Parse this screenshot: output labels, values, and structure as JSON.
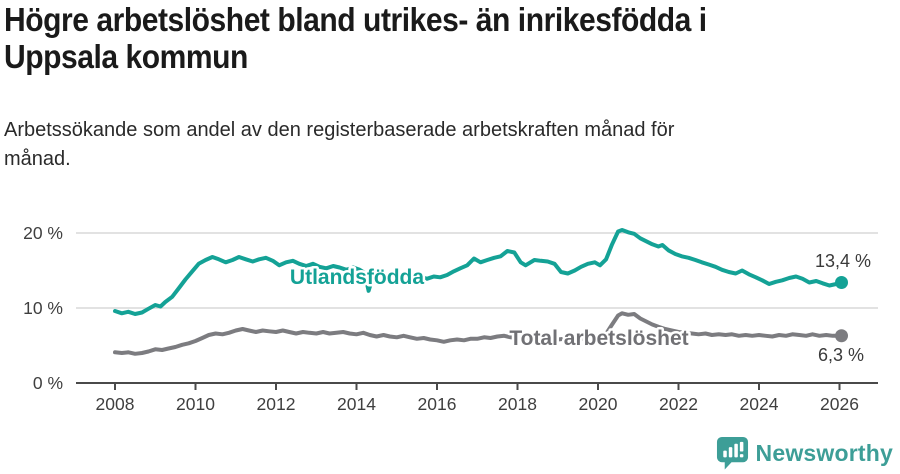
{
  "header": {
    "title": "Högre arbetslöshet bland utrikes- än inrikesfödda i Uppsala kommun",
    "subtitle": "Arbetssökande som andel av den registerbaserade arbetskraften månad för månad."
  },
  "footer": {
    "brand": "Newsworthy",
    "brand_color": "#3d9e97",
    "logo_icon": "newsworthy-bar-chart-bubble-icon"
  },
  "chart_data": {
    "type": "line",
    "title": "Högre arbetslöshet bland utrikes- än inrikesfödda i Uppsala kommun",
    "ylabel": "",
    "xlabel": "",
    "unit": "%",
    "grid": true,
    "legend_position": "inline-labels",
    "colors": {
      "grid": "#d9d9d9",
      "axis": "#4a4a4a",
      "tick_text": "#3f3f3f",
      "value_text": "#3a3a3a"
    },
    "x_axis": {
      "ticks": [
        2008,
        2010,
        2012,
        2014,
        2016,
        2018,
        2020,
        2022,
        2024,
        2026
      ],
      "range": [
        2007.0,
        2026.9
      ]
    },
    "y_axis": {
      "ticks": [
        0,
        10,
        20
      ],
      "tick_labels": [
        "0 %",
        "10 %",
        "20 %"
      ],
      "range": [
        0,
        21.3
      ]
    },
    "series": [
      {
        "name": "Utlandsfödda",
        "color": "#14a296",
        "label_color": "#14a296",
        "end_value": 13.4,
        "end_label": "13,4 %",
        "label_pos": {
          "x": 357,
          "y": 284
        },
        "end_label_pos": {
          "x": 871,
          "y": 267
        },
        "points": [
          [
            2008.0,
            9.6
          ],
          [
            2008.17,
            9.3
          ],
          [
            2008.33,
            9.5
          ],
          [
            2008.5,
            9.2
          ],
          [
            2008.67,
            9.4
          ],
          [
            2008.83,
            9.9
          ],
          [
            2009.0,
            10.4
          ],
          [
            2009.13,
            10.2
          ],
          [
            2009.25,
            10.8
          ],
          [
            2009.42,
            11.5
          ],
          [
            2009.58,
            12.6
          ],
          [
            2009.75,
            13.8
          ],
          [
            2009.92,
            14.9
          ],
          [
            2010.08,
            15.9
          ],
          [
            2010.25,
            16.4
          ],
          [
            2010.42,
            16.8
          ],
          [
            2010.58,
            16.5
          ],
          [
            2010.75,
            16.1
          ],
          [
            2010.92,
            16.4
          ],
          [
            2011.08,
            16.8
          ],
          [
            2011.25,
            16.5
          ],
          [
            2011.42,
            16.2
          ],
          [
            2011.58,
            16.5
          ],
          [
            2011.75,
            16.7
          ],
          [
            2011.92,
            16.3
          ],
          [
            2012.08,
            15.7
          ],
          [
            2012.25,
            16.1
          ],
          [
            2012.42,
            16.3
          ],
          [
            2012.58,
            15.9
          ],
          [
            2012.75,
            15.6
          ],
          [
            2012.92,
            15.9
          ],
          [
            2013.08,
            15.5
          ],
          [
            2013.25,
            15.3
          ],
          [
            2013.42,
            15.6
          ],
          [
            2013.58,
            15.4
          ],
          [
            2013.75,
            15.1
          ],
          [
            2013.92,
            15.4
          ],
          [
            2014.08,
            15.1
          ],
          [
            2014.2,
            14.7
          ],
          [
            2014.3,
            12.3
          ],
          [
            2014.42,
            14.4
          ],
          [
            2014.58,
            14.7
          ],
          [
            2014.75,
            14.4
          ],
          [
            2014.92,
            14.6
          ],
          [
            2015.08,
            14.3
          ],
          [
            2015.25,
            14.1
          ],
          [
            2015.42,
            14.4
          ],
          [
            2015.58,
            14.2
          ],
          [
            2015.75,
            13.9
          ],
          [
            2015.92,
            14.2
          ],
          [
            2016.08,
            14.1
          ],
          [
            2016.25,
            14.4
          ],
          [
            2016.42,
            14.9
          ],
          [
            2016.58,
            15.3
          ],
          [
            2016.75,
            15.7
          ],
          [
            2016.92,
            16.6
          ],
          [
            2017.08,
            16.1
          ],
          [
            2017.25,
            16.4
          ],
          [
            2017.42,
            16.7
          ],
          [
            2017.58,
            16.9
          ],
          [
            2017.75,
            17.6
          ],
          [
            2017.92,
            17.4
          ],
          [
            2018.08,
            16.1
          ],
          [
            2018.2,
            15.7
          ],
          [
            2018.42,
            16.4
          ],
          [
            2018.58,
            16.3
          ],
          [
            2018.75,
            16.2
          ],
          [
            2018.92,
            15.9
          ],
          [
            2019.08,
            14.8
          ],
          [
            2019.25,
            14.6
          ],
          [
            2019.42,
            15.0
          ],
          [
            2019.58,
            15.5
          ],
          [
            2019.75,
            15.9
          ],
          [
            2019.92,
            16.1
          ],
          [
            2020.05,
            15.7
          ],
          [
            2020.2,
            16.5
          ],
          [
            2020.35,
            18.5
          ],
          [
            2020.5,
            20.2
          ],
          [
            2020.6,
            20.4
          ],
          [
            2020.75,
            20.1
          ],
          [
            2020.9,
            19.9
          ],
          [
            2021.05,
            19.3
          ],
          [
            2021.2,
            18.9
          ],
          [
            2021.35,
            18.5
          ],
          [
            2021.5,
            18.2
          ],
          [
            2021.6,
            18.4
          ],
          [
            2021.75,
            17.7
          ],
          [
            2021.92,
            17.2
          ],
          [
            2022.08,
            16.9
          ],
          [
            2022.25,
            16.7
          ],
          [
            2022.42,
            16.4
          ],
          [
            2022.58,
            16.1
          ],
          [
            2022.75,
            15.8
          ],
          [
            2022.92,
            15.5
          ],
          [
            2023.08,
            15.1
          ],
          [
            2023.25,
            14.8
          ],
          [
            2023.42,
            14.6
          ],
          [
            2023.58,
            15.0
          ],
          [
            2023.75,
            14.5
          ],
          [
            2023.92,
            14.1
          ],
          [
            2024.08,
            13.7
          ],
          [
            2024.25,
            13.2
          ],
          [
            2024.42,
            13.5
          ],
          [
            2024.58,
            13.7
          ],
          [
            2024.75,
            14.0
          ],
          [
            2024.92,
            14.2
          ],
          [
            2025.08,
            13.9
          ],
          [
            2025.25,
            13.4
          ],
          [
            2025.42,
            13.6
          ],
          [
            2025.58,
            13.3
          ],
          [
            2025.75,
            13.0
          ],
          [
            2025.92,
            13.2
          ],
          [
            2026.05,
            13.4
          ]
        ]
      },
      {
        "name": "Total arbetslöshet",
        "color": "#7c7c80",
        "label_color": "#717175",
        "end_value": 6.3,
        "end_label": "6,3 %",
        "label_pos": {
          "x": 599,
          "y": 345
        },
        "end_label_pos": {
          "x": 864,
          "y": 361
        },
        "points": [
          [
            2008.0,
            4.1
          ],
          [
            2008.17,
            4.0
          ],
          [
            2008.33,
            4.1
          ],
          [
            2008.5,
            3.9
          ],
          [
            2008.67,
            4.0
          ],
          [
            2008.83,
            4.2
          ],
          [
            2009.0,
            4.5
          ],
          [
            2009.17,
            4.4
          ],
          [
            2009.33,
            4.6
          ],
          [
            2009.5,
            4.8
          ],
          [
            2009.67,
            5.1
          ],
          [
            2009.83,
            5.3
          ],
          [
            2010.0,
            5.6
          ],
          [
            2010.17,
            6.0
          ],
          [
            2010.33,
            6.4
          ],
          [
            2010.5,
            6.6
          ],
          [
            2010.67,
            6.5
          ],
          [
            2010.83,
            6.7
          ],
          [
            2011.0,
            7.0
          ],
          [
            2011.17,
            7.2
          ],
          [
            2011.33,
            7.0
          ],
          [
            2011.5,
            6.8
          ],
          [
            2011.67,
            7.0
          ],
          [
            2011.83,
            6.9
          ],
          [
            2012.0,
            6.8
          ],
          [
            2012.17,
            7.0
          ],
          [
            2012.33,
            6.8
          ],
          [
            2012.5,
            6.6
          ],
          [
            2012.67,
            6.8
          ],
          [
            2012.83,
            6.7
          ],
          [
            2013.0,
            6.6
          ],
          [
            2013.17,
            6.8
          ],
          [
            2013.33,
            6.6
          ],
          [
            2013.5,
            6.7
          ],
          [
            2013.67,
            6.8
          ],
          [
            2013.83,
            6.6
          ],
          [
            2014.0,
            6.5
          ],
          [
            2014.17,
            6.7
          ],
          [
            2014.33,
            6.4
          ],
          [
            2014.5,
            6.2
          ],
          [
            2014.67,
            6.4
          ],
          [
            2014.83,
            6.2
          ],
          [
            2015.0,
            6.1
          ],
          [
            2015.17,
            6.3
          ],
          [
            2015.33,
            6.1
          ],
          [
            2015.5,
            5.9
          ],
          [
            2015.67,
            6.0
          ],
          [
            2015.83,
            5.8
          ],
          [
            2016.0,
            5.7
          ],
          [
            2016.17,
            5.5
          ],
          [
            2016.33,
            5.7
          ],
          [
            2016.5,
            5.8
          ],
          [
            2016.67,
            5.7
          ],
          [
            2016.83,
            5.9
          ],
          [
            2017.0,
            5.9
          ],
          [
            2017.17,
            6.1
          ],
          [
            2017.33,
            6.0
          ],
          [
            2017.5,
            6.2
          ],
          [
            2017.67,
            6.3
          ],
          [
            2017.83,
            6.1
          ],
          [
            2018.0,
            6.0
          ],
          [
            2018.17,
            6.1
          ],
          [
            2018.33,
            5.9
          ],
          [
            2018.5,
            6.0
          ],
          [
            2018.67,
            5.9
          ],
          [
            2018.83,
            5.8
          ],
          [
            2019.0,
            5.8
          ],
          [
            2019.17,
            5.9
          ],
          [
            2019.33,
            5.7
          ],
          [
            2019.5,
            5.8
          ],
          [
            2019.67,
            5.9
          ],
          [
            2019.83,
            5.8
          ],
          [
            2020.0,
            5.9
          ],
          [
            2020.17,
            6.3
          ],
          [
            2020.35,
            7.8
          ],
          [
            2020.5,
            9.0
          ],
          [
            2020.6,
            9.3
          ],
          [
            2020.75,
            9.1
          ],
          [
            2020.9,
            9.2
          ],
          [
            2021.05,
            8.6
          ],
          [
            2021.2,
            8.2
          ],
          [
            2021.35,
            7.8
          ],
          [
            2021.5,
            7.5
          ],
          [
            2021.67,
            7.2
          ],
          [
            2021.83,
            7.0
          ],
          [
            2022.0,
            6.8
          ],
          [
            2022.17,
            6.7
          ],
          [
            2022.33,
            6.6
          ],
          [
            2022.5,
            6.5
          ],
          [
            2022.67,
            6.6
          ],
          [
            2022.83,
            6.4
          ],
          [
            2023.0,
            6.5
          ],
          [
            2023.17,
            6.4
          ],
          [
            2023.33,
            6.5
          ],
          [
            2023.5,
            6.3
          ],
          [
            2023.67,
            6.4
          ],
          [
            2023.83,
            6.3
          ],
          [
            2024.0,
            6.4
          ],
          [
            2024.17,
            6.3
          ],
          [
            2024.33,
            6.2
          ],
          [
            2024.5,
            6.4
          ],
          [
            2024.67,
            6.3
          ],
          [
            2024.83,
            6.5
          ],
          [
            2025.0,
            6.4
          ],
          [
            2025.17,
            6.3
          ],
          [
            2025.33,
            6.5
          ],
          [
            2025.5,
            6.3
          ],
          [
            2025.67,
            6.4
          ],
          [
            2025.83,
            6.3
          ],
          [
            2026.05,
            6.3
          ]
        ]
      }
    ]
  }
}
